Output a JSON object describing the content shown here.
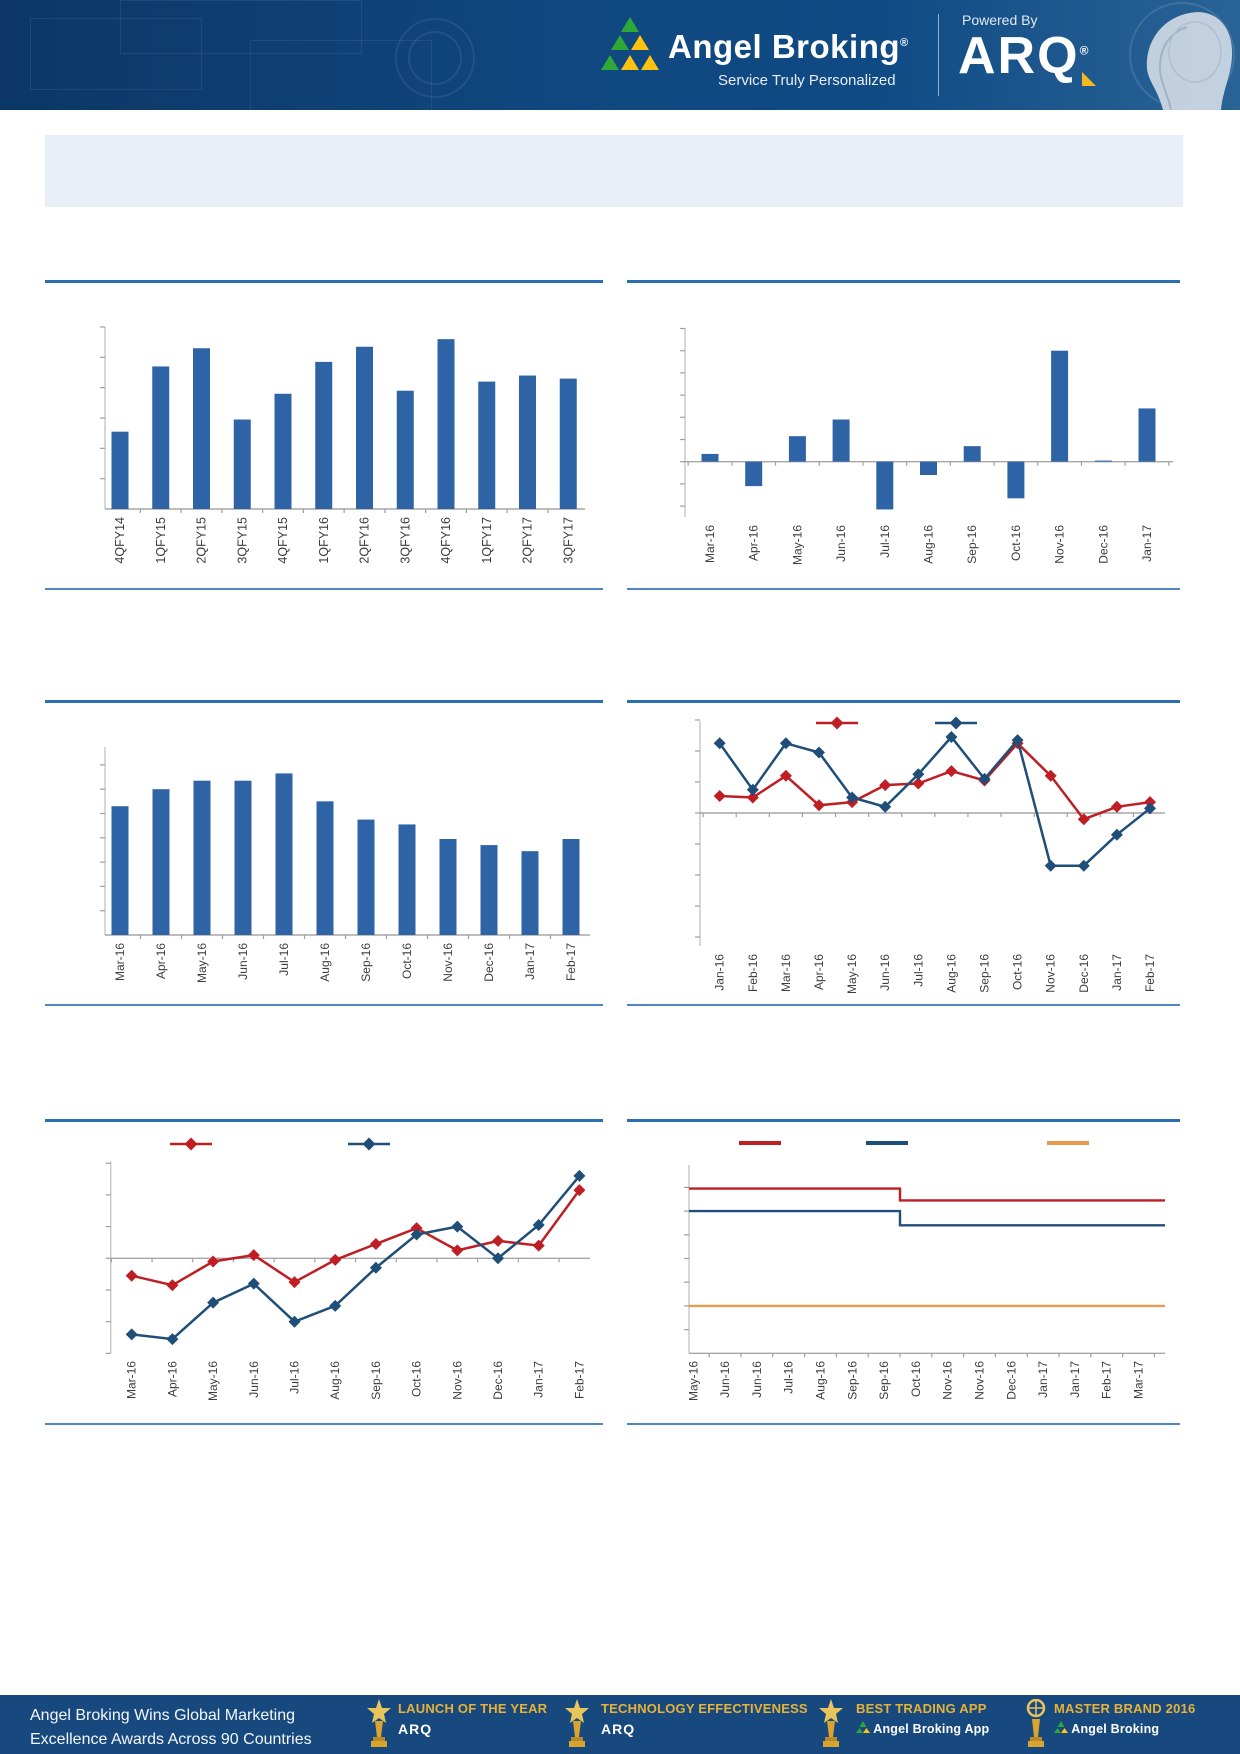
{
  "header": {
    "brand": "Angel Broking",
    "registered": "®",
    "tagline": "Service Truly Personalized",
    "powered_by": "Powered By",
    "arq_logo": "ARQ"
  },
  "colors": {
    "bar_blue": "#2e64a6",
    "line_red": "#be1e24",
    "line_navy": "#1f4e79",
    "line_orange": "#e89b4e",
    "title_rule_blue": "#2c6fb0",
    "axis_gray": "#a6a6a6",
    "header_navy": "#10477f",
    "footer_navy": "#17497e",
    "banner_light": "#e9eff8",
    "award_gold": "#e7b236"
  },
  "chart_data": [
    {
      "id": "quarterly-bar-chart",
      "type": "bar",
      "title": "",
      "categories": [
        "4QFY14",
        "1QFY15",
        "2QFY15",
        "3QFY15",
        "4QFY15",
        "1QFY16",
        "2QFY16",
        "3QFY16",
        "4QFY16",
        "1QFY17",
        "2QFY17",
        "3QFY17"
      ],
      "values": [
        2.55,
        4.7,
        5.3,
        2.95,
        3.8,
        4.85,
        5.35,
        3.9,
        5.6,
        4.2,
        4.4,
        4.3
      ],
      "xlabel": "",
      "ylabel": "",
      "ylim": [
        0,
        6.2
      ],
      "y_tick_step": 1,
      "grid": false,
      "bar_color": "#2e64a6"
    },
    {
      "id": "monthly-bar-chart-pos-neg",
      "type": "bar",
      "title": "",
      "categories": [
        "Mar-16",
        "Apr-16",
        "May-16",
        "Jun-16",
        "Jul-16",
        "Aug-16",
        "Sep-16",
        "Oct-16",
        "Nov-16",
        "Dec-16",
        "Jan-17"
      ],
      "values": [
        0.35,
        -1.1,
        1.15,
        1.9,
        -2.15,
        -0.6,
        0.7,
        -1.65,
        5.0,
        0.05,
        2.4
      ],
      "xlabel": "",
      "ylabel": "",
      "ylim": [
        -2.6,
        6.2
      ],
      "y_tick_step": 1,
      "grid": false,
      "bar_color": "#2e64a6"
    },
    {
      "id": "monthly-bar-chart-declining",
      "type": "bar",
      "title": "",
      "categories": [
        "Mar-16",
        "Apr-16",
        "May-16",
        "Jun-16",
        "Jul-16",
        "Aug-16",
        "Sep-16",
        "Oct-16",
        "Nov-16",
        "Dec-16",
        "Jan-17",
        "Feb-17"
      ],
      "values": [
        5.3,
        6.0,
        6.35,
        6.35,
        6.65,
        5.5,
        4.75,
        4.55,
        3.95,
        3.7,
        3.45,
        3.95
      ],
      "xlabel": "",
      "ylabel": "",
      "ylim": [
        0,
        7.8
      ],
      "y_tick_step": 1,
      "grid": false,
      "bar_color": "#2e64a6"
    },
    {
      "id": "two-series-line-chart-a",
      "type": "line",
      "title": "",
      "categories": [
        "Jan-16",
        "Feb-16",
        "Mar-16",
        "Apr-16",
        "May-16",
        "Jun-16",
        "Jul-16",
        "Aug-16",
        "Sep-16",
        "Oct-16",
        "Nov-16",
        "Dec-16",
        "Jan-17",
        "Feb-17"
      ],
      "series": [
        {
          "name": "red-series",
          "color": "#be1e24",
          "marker": "diamond",
          "values": [
            0.55,
            0.5,
            1.2,
            0.25,
            0.35,
            0.9,
            0.95,
            1.35,
            1.05,
            2.25,
            1.2,
            -0.2,
            0.2,
            0.35
          ]
        },
        {
          "name": "navy-series",
          "color": "#1f4e79",
          "marker": "diamond",
          "values": [
            2.25,
            0.75,
            2.25,
            1.95,
            0.5,
            0.2,
            1.25,
            2.45,
            1.1,
            2.35,
            -1.7,
            -1.7,
            -0.7,
            0.15
          ]
        }
      ],
      "legend": {
        "position": "top",
        "labels": [
          "",
          ""
        ]
      },
      "xlabel": "",
      "ylabel": "",
      "ylim": [
        -4.35,
        3.1
      ],
      "y_tick_step": 1,
      "grid": false
    },
    {
      "id": "two-series-line-chart-b",
      "type": "line",
      "title": "",
      "categories": [
        "Mar-16",
        "Apr-16",
        "May-16",
        "Jun-16",
        "Jul-16",
        "Aug-16",
        "Sep-16",
        "Oct-16",
        "Nov-16",
        "Dec-16",
        "Jan-17",
        "Feb-17"
      ],
      "series": [
        {
          "name": "red-series",
          "color": "#be1e24",
          "marker": "diamond",
          "values": [
            -0.55,
            -0.85,
            -0.1,
            0.1,
            -0.75,
            -0.05,
            0.45,
            0.95,
            0.25,
            0.55,
            0.4,
            2.15
          ]
        },
        {
          "name": "navy-series",
          "color": "#1f4e79",
          "marker": "diamond",
          "values": [
            -2.4,
            -2.55,
            -1.4,
            -0.8,
            -2.0,
            -1.5,
            -0.3,
            0.75,
            1.0,
            0.0,
            1.05,
            2.6
          ]
        }
      ],
      "legend": {
        "position": "top",
        "labels": [
          "",
          ""
        ]
      },
      "xlabel": "",
      "ylabel": "",
      "ylim": [
        -3.1,
        3.1
      ],
      "y_tick_step": 1,
      "grid": false
    },
    {
      "id": "three-series-step-chart",
      "type": "step",
      "title": "",
      "categories": [
        "May-16",
        "Jun-16",
        "Jun-16",
        "Jul-16",
        "Aug-16",
        "Sep-16",
        "Sep-16",
        "Oct-16",
        "Nov-16",
        "Nov-16",
        "Dec-16",
        "Jan-17",
        "Jan-17",
        "Feb-17",
        "Mar-17"
      ],
      "series": [
        {
          "name": "red-series",
          "color": "#be1e24",
          "marker": "none",
          "values": [
            6.95,
            6.95,
            6.95,
            6.95,
            6.95,
            6.95,
            6.95,
            6.45,
            6.45,
            6.45,
            6.45,
            6.45,
            6.45,
            6.45,
            6.45
          ]
        },
        {
          "name": "navy-series",
          "color": "#1f4e79",
          "marker": "none",
          "values": [
            6.0,
            6.0,
            6.0,
            6.0,
            6.0,
            6.0,
            6.0,
            5.4,
            5.4,
            5.4,
            5.4,
            5.4,
            5.4,
            5.4,
            5.4
          ]
        },
        {
          "name": "orange-series",
          "color": "#e89b4e",
          "marker": "none",
          "values": [
            2.0,
            2.0,
            2.0,
            2.0,
            2.0,
            2.0,
            2.0,
            2.0,
            2.0,
            2.0,
            2.0,
            2.0,
            2.0,
            2.0,
            2.0
          ]
        }
      ],
      "legend": {
        "position": "top",
        "labels": [
          "",
          "",
          ""
        ]
      },
      "xlabel": "",
      "ylabel": "",
      "ylim": [
        0,
        8.0
      ],
      "y_tick_step": 1,
      "grid": false
    }
  ],
  "footer": {
    "message_line1": "Angel Broking Wins Global Marketing",
    "message_line2": "Excellence Awards Across 90 Countries",
    "awards": [
      {
        "title": "LAUNCH OF THE YEAR",
        "subtitle": "ARQ",
        "icon": "trophy-star-icon"
      },
      {
        "title": "TECHNOLOGY EFFECTIVENESS",
        "subtitle": "ARQ",
        "icon": "trophy-star-icon"
      },
      {
        "title": "BEST TRADING APP",
        "subtitle": "Angel Broking App",
        "icon": "trophy-star-icon"
      },
      {
        "title": "MASTER BRAND 2016",
        "subtitle": "Angel Broking",
        "icon": "trophy-globe-icon"
      }
    ]
  }
}
